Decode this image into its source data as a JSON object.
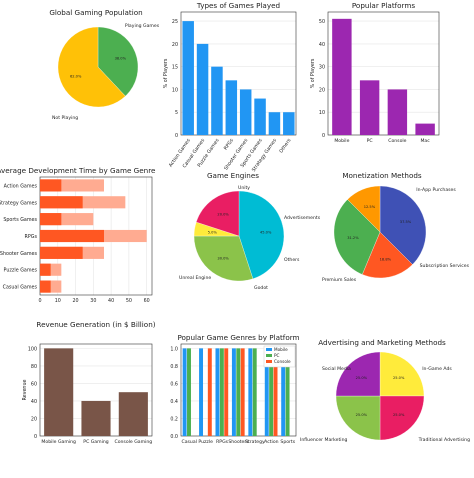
{
  "chart_data": [
    {
      "type": "pie",
      "title": "Global Gaming Population",
      "labels": [
        "Playing Games",
        "Not Playing"
      ],
      "values": [
        38.0,
        62.0
      ],
      "pct_labels": [
        "38.0%",
        "62.0%"
      ],
      "colors": [
        "#4caf50",
        "#ffc107"
      ],
      "grid": false
    },
    {
      "type": "bar",
      "title": "Types of Games Played",
      "categories": [
        "Action Games",
        "Casual Games",
        "Puzzle Games",
        "RPGs",
        "Shooter Games",
        "Sports Games",
        "Strategy Games",
        "Others"
      ],
      "values": [
        25,
        20,
        15,
        12,
        10,
        8,
        5,
        5
      ],
      "ylabel": "% of Players",
      "ylim": [
        0,
        27
      ],
      "yticks": [
        0,
        5,
        10,
        15,
        20,
        25
      ],
      "color": "#2196f3",
      "grid": true
    },
    {
      "type": "bar",
      "title": "Popular Platforms",
      "categories": [
        "Mobile",
        "PC",
        "Console",
        "Mac"
      ],
      "values": [
        51,
        24,
        20,
        5
      ],
      "ylabel": "% of Players",
      "ylim": [
        0,
        54
      ],
      "yticks": [
        0,
        10,
        20,
        30,
        40,
        50
      ],
      "color": "#9c27b0",
      "grid": true
    },
    {
      "type": "bar",
      "orientation": "horizontal",
      "title": "Average Development Time by Game Genre",
      "categories": [
        "Action Games",
        "Strategy Games",
        "Sports Games",
        "RPGs",
        "Shooter Games",
        "Puzzle Games",
        "Casual Games"
      ],
      "series": [
        {
          "values": [
            36,
            48,
            30,
            60,
            36,
            12,
            12
          ],
          "color": "#ffab91"
        },
        {
          "values": [
            12,
            24,
            12,
            36,
            24,
            6,
            6
          ],
          "color": "#ff5722"
        }
      ],
      "xlim": [
        0,
        63
      ],
      "xticks": [
        0,
        10,
        20,
        30,
        40,
        50,
        60
      ],
      "grid": true
    },
    {
      "type": "pie",
      "title": "Game Engines",
      "labels": [
        "Unity",
        "Unreal Engine",
        "Godot",
        "Others"
      ],
      "values": [
        45.0,
        30.0,
        5.0,
        20.0
      ],
      "pct_labels": [
        "45.0%",
        "30.0%",
        "5.0%",
        "20.0%"
      ],
      "colors": [
        "#00bcd4",
        "#8bc34a",
        "#ffeb3b",
        "#e91e63"
      ],
      "grid": false
    },
    {
      "type": "pie",
      "title": "Monetization Methods",
      "labels": [
        "In-App Purchases",
        "Subscription Services",
        "Premium Sales",
        "Advertisements"
      ],
      "values": [
        37.5,
        18.8,
        31.2,
        12.5
      ],
      "pct_labels": [
        "37.5%",
        "18.8%",
        "31.2%",
        "12.5%"
      ],
      "colors": [
        "#3f51b5",
        "#ff5722",
        "#4caf50",
        "#ff9800"
      ],
      "grid": false
    },
    {
      "type": "bar",
      "title": "Revenue Generation (in $ Billion)",
      "categories": [
        "Mobile Gaming",
        "PC Gaming",
        "Console Gaming"
      ],
      "values": [
        100,
        40,
        50
      ],
      "ylabel": "Revenue",
      "ylim": [
        0,
        105
      ],
      "yticks": [
        0,
        20,
        40,
        60,
        80,
        100
      ],
      "color": "#795548",
      "grid": true
    },
    {
      "type": "bar",
      "title": "Popular Game Genres by Platform",
      "categories": [
        "Casual",
        "Puzzle",
        "RPGs",
        "Shooters",
        "Strategy",
        "Action",
        "Sports"
      ],
      "tick_labels": [
        "Casual",
        "Puzzle",
        "RPGs",
        "Shooters",
        "Strategy",
        "Action",
        "Sports"
      ],
      "series": [
        {
          "name": "Mobile",
          "values": [
            1,
            1,
            1,
            1,
            1,
            1,
            1
          ],
          "color": "#2196f3"
        },
        {
          "name": "PC",
          "values": [
            1,
            0,
            1,
            1,
            1,
            1,
            1
          ],
          "color": "#4caf50"
        },
        {
          "name": "Console",
          "values": [
            0,
            1,
            1,
            1,
            0,
            1,
            0
          ],
          "color": "#ff5722"
        }
      ],
      "ylim": [
        0,
        1.05
      ],
      "yticks": [
        0.0,
        0.2,
        0.4,
        0.6,
        0.8,
        1.0
      ],
      "ytick_labels": [
        "0.0",
        "0.2",
        "0.4",
        "0.6",
        "0.8",
        "1.0"
      ],
      "legend": "top-right",
      "grid": true
    },
    {
      "type": "pie",
      "title": "Advertising and Marketing Methods",
      "labels": [
        "In-Game Ads",
        "Traditional Advertising",
        "Influencer Marketing",
        "Social Media"
      ],
      "values": [
        25.0,
        25.0,
        25.0,
        25.0
      ],
      "pct_labels": [
        "25.0%",
        "25.0%",
        "25.0%",
        "25.0%"
      ],
      "colors": [
        "#ffeb3b",
        "#e91e63",
        "#8bc34a",
        "#9c27b0"
      ],
      "grid": false
    }
  ]
}
